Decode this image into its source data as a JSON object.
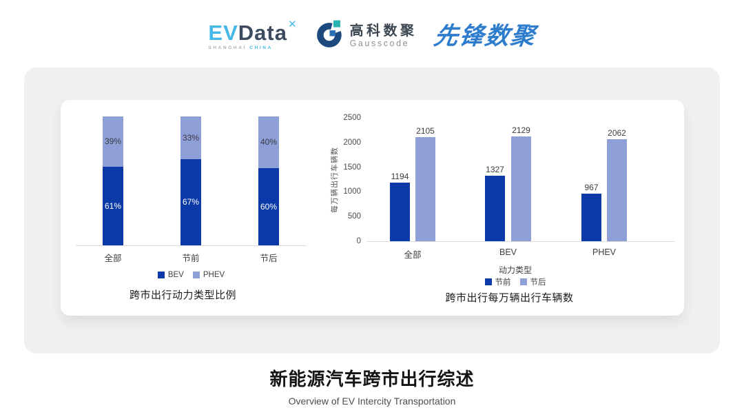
{
  "header": {
    "evdata": {
      "ev": "EV",
      "data": "Data",
      "mark": "✕",
      "sub_left": "SHANGHAI",
      "sub_right": "CHINA"
    },
    "gausscode": {
      "cn": "高科数聚",
      "en": "Gausscode"
    },
    "pioneer": "先锋数聚"
  },
  "palette": {
    "bev_dark_blue": "#0b3aa8",
    "phev_light_blue": "#8e9ed6",
    "axis_gray": "#dcdcdc",
    "evdata_blue": "#45b8e8",
    "evdata_dark": "#3d4b5f",
    "gausscode_navy": "#1c4a7e",
    "gausscode_teal": "#2ab3b0",
    "gausscode_blue": "#2f6fb5",
    "pioneer_blue": "#2e7ccc",
    "card_gray": "#f0f0f0"
  },
  "chart_data": [
    {
      "type": "bar",
      "stacked": true,
      "percent": true,
      "title": "跨市出行动力类型比例",
      "categories": [
        "全部",
        "节前",
        "节后"
      ],
      "series": [
        {
          "name": "BEV",
          "values": [
            61,
            67,
            60
          ],
          "unit": "%",
          "color": "#0b3aa8"
        },
        {
          "name": "PHEV",
          "values": [
            39,
            33,
            40
          ],
          "unit": "%",
          "color": "#8e9ed6"
        }
      ],
      "ylim": [
        0,
        100
      ],
      "grid": false,
      "legend_position": "bottom"
    },
    {
      "type": "bar",
      "grouped": true,
      "title": "跨市出行每万辆出行车辆数",
      "categories": [
        "全部",
        "BEV",
        "PHEV"
      ],
      "xlabel": "动力类型",
      "ylabel": "每万辆出行车辆数",
      "yticks": [
        0,
        500,
        1000,
        1500,
        2000,
        2500
      ],
      "ylim": [
        0,
        2500
      ],
      "series": [
        {
          "name": "节前",
          "values": [
            1194,
            1327,
            967
          ],
          "color": "#0b3aa8"
        },
        {
          "name": "节后",
          "values": [
            2105,
            2129,
            2062
          ],
          "color": "#8e9ed6"
        }
      ],
      "grid": false,
      "legend_position": "bottom"
    }
  ],
  "footer": {
    "title": "新能源汽车跨市出行综述",
    "subtitle": "Overview of EV Intercity Transportation"
  }
}
